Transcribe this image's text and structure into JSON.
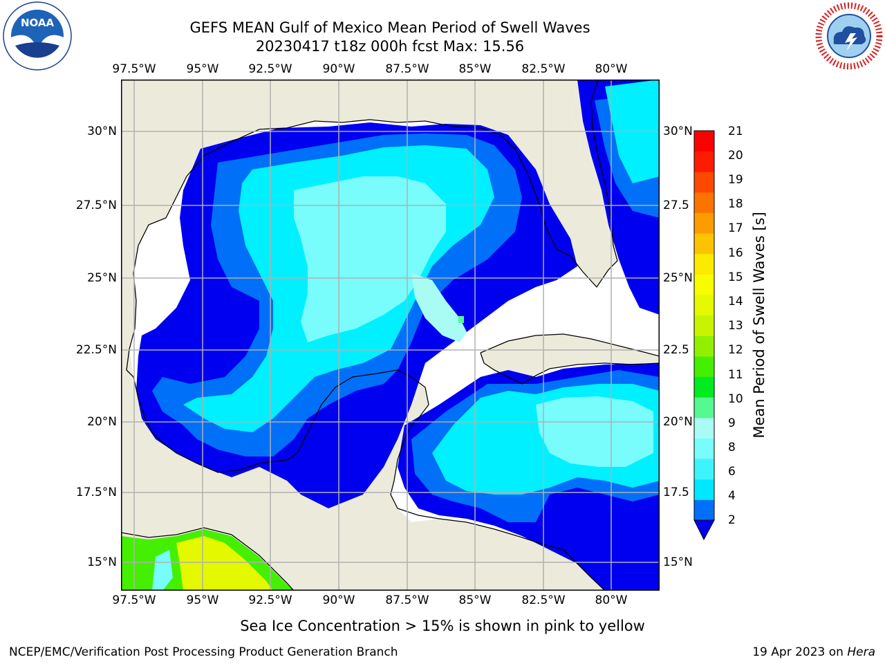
{
  "header": {
    "title_line1": "GEFS MEAN Gulf of Mexico Mean Period of Swell Waves",
    "title_line2": "20230417 t18z 000h fcst   Max: 15.56"
  },
  "logos": {
    "left_name": "NOAA",
    "left_ring": "NATIONAL OCEANIC AND ATMOSPHERIC ADMINISTRATION · U.S. DEPARTMENT OF COMMERCE",
    "right_ring": "NATIONAL WEATHER SERVICE"
  },
  "map": {
    "lon_labels": [
      "97.5°W",
      "95°W",
      "92.5°W",
      "90°W",
      "87.5°W",
      "85°W",
      "82.5°W",
      "80°W"
    ],
    "lat_labels_left": [
      "30°N",
      "27.5°N",
      "25°N",
      "22.5°N",
      "20°N",
      "17.5°N",
      "15°N"
    ],
    "lat_labels_right": [
      "30°N",
      "27.5",
      "25°N",
      "22.5",
      "20°N",
      "17.5",
      "15°N"
    ],
    "colors": {
      "land": "#ecebdb",
      "no_data": "#ffffff",
      "grid": "#b0b0b0",
      "coast": "#000000"
    }
  },
  "colorbar": {
    "label": "Mean Period of Swell Waves [s]",
    "tick_labels": [
      "21",
      "20",
      "19",
      "18",
      "17",
      "16",
      "15",
      "14",
      "13",
      "12",
      "11",
      "10",
      "9",
      "8",
      "6",
      "4",
      "2"
    ],
    "colors_bottom_to_top": [
      "#0070f8",
      "#00e8ff",
      "#3ef4fc",
      "#78fcfc",
      "#a8fcf4",
      "#56f890",
      "#00ec20",
      "#44f000",
      "#90f000",
      "#c8f400",
      "#e4f800",
      "#f8fc00",
      "#fcea00",
      "#fcc400",
      "#fc9c00",
      "#fc7400",
      "#fc4800",
      "#fc1c00",
      "#fc0000"
    ],
    "extend_color": "#0000f0"
  },
  "footer": {
    "sea_ice_note": "Sea Ice Concentration > 15% is shown in pink to yellow",
    "left": "NCEP/EMC/Verification Post Processing Product Generation Branch",
    "right_prefix": "19 Apr 2023 on ",
    "right_machine": "Hera"
  }
}
